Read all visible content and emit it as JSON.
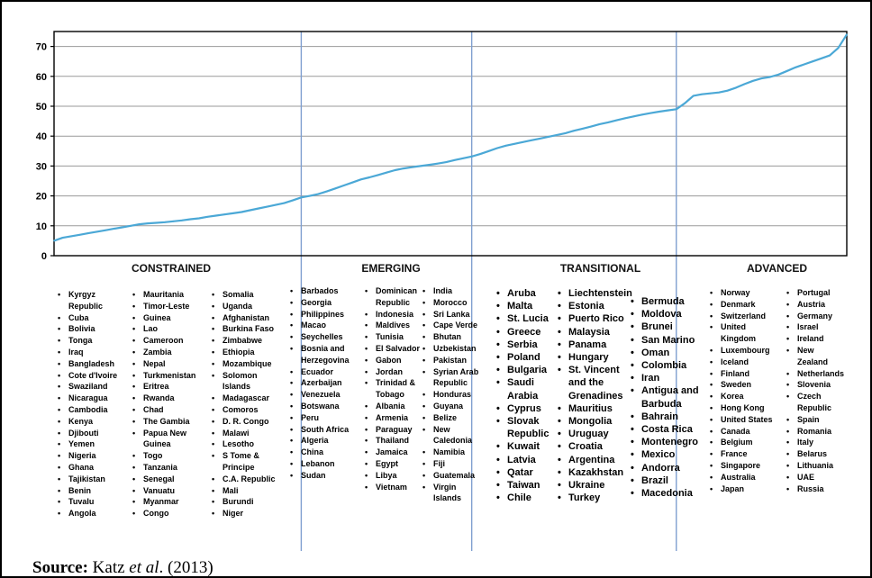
{
  "chart_data": {
    "type": "line",
    "ylim": [
      0,
      75
    ],
    "y_ticks": [
      "0",
      "10",
      "20",
      "30",
      "40",
      "50",
      "60",
      "70"
    ],
    "grid": true,
    "line_color": "#4ba8d6",
    "divider_color": "#7f9fd0",
    "series": [
      {
        "values": [
          5,
          6,
          6.5,
          7,
          7.5,
          8,
          8.5,
          9,
          9.5,
          10,
          10.5,
          10.8,
          11,
          11.2,
          11.5,
          11.8,
          12.2,
          12.5,
          13,
          13.4,
          13.8,
          14.2,
          14.6,
          15.2,
          15.8,
          16.4,
          17,
          17.6,
          18.5,
          19.5,
          20,
          20.6,
          21.5,
          22.5,
          23.5,
          24.5,
          25.5,
          26.2,
          27,
          27.8,
          28.6,
          29.2,
          29.6,
          30,
          30.4,
          30.8,
          31.3,
          32,
          32.6,
          33.2,
          34,
          35,
          36,
          36.8,
          37.4,
          38,
          38.6,
          39.2,
          39.8,
          40.4,
          41,
          41.8,
          42.5,
          43.2,
          44,
          44.6,
          45.3,
          46,
          46.6,
          47.2,
          47.7,
          48.2,
          48.6,
          49,
          51,
          53.5,
          54,
          54.3,
          54.6,
          55.2,
          56.2,
          57.4,
          58.5,
          59.3,
          59.8,
          60.6,
          61.8,
          63,
          64,
          65,
          66,
          67,
          69.5,
          74
        ]
      }
    ],
    "groups": [
      {
        "label": "CONSTRAINED",
        "end_index": 29
      },
      {
        "label": "EMERGING",
        "end_index": 49
      },
      {
        "label": "TRANSITIONAL",
        "end_index": 73
      },
      {
        "label": "ADVANCED",
        "end_index": 93
      }
    ]
  },
  "lists": {
    "constrained_1": [
      "Kyrgyz",
      "~Republic",
      "Cuba",
      "Bolivia",
      "Tonga",
      "Iraq",
      "Bangladesh",
      "Cote d'Ivoire",
      "Swaziland",
      "Nicaragua",
      "Cambodia",
      "Kenya",
      "Djibouti",
      "Yemen",
      "Nigeria",
      "Ghana",
      "Tajikistan",
      "Benin",
      "Tuvalu",
      "Angola"
    ],
    "constrained_2": [
      "Mauritania",
      "Timor-Leste",
      "Guinea",
      "Lao",
      "Cameroon",
      "Zambia",
      "Nepal",
      "Turkmenistan",
      "Eritrea",
      "Rwanda",
      "Chad",
      "The Gambia",
      "Papua New",
      "~Guinea",
      "Togo",
      "Tanzania",
      "Senegal",
      "Vanuatu",
      "Myanmar",
      "Congo"
    ],
    "constrained_3": [
      "Somalia",
      "Uganda",
      "Afghanistan",
      "Burkina Faso",
      "Zimbabwe",
      "Ethiopia",
      "Mozambique",
      "Solomon",
      "~Islands",
      "Madagascar",
      "Comoros",
      "D. R. Congo",
      "Malawi",
      "Lesotho",
      "S Tome &",
      "~Principe",
      "C.A. Republic",
      "Mali",
      "Burundi",
      "Niger"
    ],
    "emerging_1": [
      "Barbados",
      "Georgia",
      "Philippines",
      "Macao",
      "Seychelles",
      "Bosnia and",
      "~Herzegovina",
      "Ecuador",
      "Azerbaijan",
      "Venezuela",
      "Botswana",
      "Peru",
      "South Africa",
      "Algeria",
      "China",
      "Lebanon",
      "Sudan"
    ],
    "emerging_2": [
      "Dominican",
      "~Republic",
      "Indonesia",
      "Maldives",
      "Tunisia",
      "El Salvador",
      "Gabon",
      "Jordan",
      "Trinidad &",
      "~Tobago",
      "Albania",
      "Armenia",
      "Paraguay",
      "Thailand",
      "Jamaica",
      "Egypt",
      "Libya",
      "Vietnam"
    ],
    "emerging_3": [
      "India",
      "Morocco",
      "Sri Lanka",
      "Cape Verde",
      "Bhutan",
      "Uzbekistan",
      "Pakistan",
      "Syrian Arab",
      "~Republic",
      "Honduras",
      "Guyana",
      "Belize",
      "New",
      "~Caledonia",
      "Namibia",
      "Fiji",
      "Guatemala",
      "Virgin",
      "~Islands"
    ],
    "transitional_1": [
      "Aruba",
      "Malta",
      "St. Lucia",
      "Greece",
      "Serbia",
      "Poland",
      "Bulgaria",
      "Saudi",
      "~Arabia",
      "Cyprus",
      "Slovak",
      "~Republic",
      "Kuwait",
      "Latvia",
      "Qatar",
      "Taiwan",
      "Chile"
    ],
    "transitional_2": [
      "Liechtenstein",
      "Estonia",
      "Puerto Rico",
      "Malaysia",
      "Panama",
      "Hungary",
      "St. Vincent",
      "~and the",
      "~Grenadines",
      "Mauritius",
      "Mongolia",
      "Uruguay",
      "Croatia",
      "Argentina",
      "Kazakhstan",
      "Ukraine",
      "Turkey"
    ],
    "transitional_3": [
      "Bermuda",
      "Moldova",
      "Brunei",
      "San Marino",
      "Oman",
      "Colombia",
      "Iran",
      "Antigua and",
      "~Barbuda",
      "Bahrain",
      "Costa Rica",
      "Montenegro",
      "Mexico",
      "Andorra",
      "Brazil",
      "Macedonia"
    ],
    "advanced_1": [
      "Norway",
      "Denmark",
      "Switzerland",
      "United",
      "~Kingdom",
      "Luxembourg",
      "Iceland",
      "Finland",
      "Sweden",
      "Korea",
      "Hong Kong",
      "United States",
      "Canada",
      "Belgium",
      "France",
      "Singapore",
      "Australia",
      "Japan"
    ],
    "advanced_2": [
      "Portugal",
      "Austria",
      "Germany",
      "Israel",
      "Ireland",
      "New",
      "~Zealand",
      "Netherlands",
      "Slovenia",
      "Czech",
      "~Republic",
      "Spain",
      "Romania",
      "Italy",
      "Belarus",
      "Lithuania",
      "UAE",
      "Russia"
    ]
  },
  "source": {
    "label": "Source:",
    "authors": "Katz",
    "etal": "et al",
    "year": ". (2013)"
  }
}
